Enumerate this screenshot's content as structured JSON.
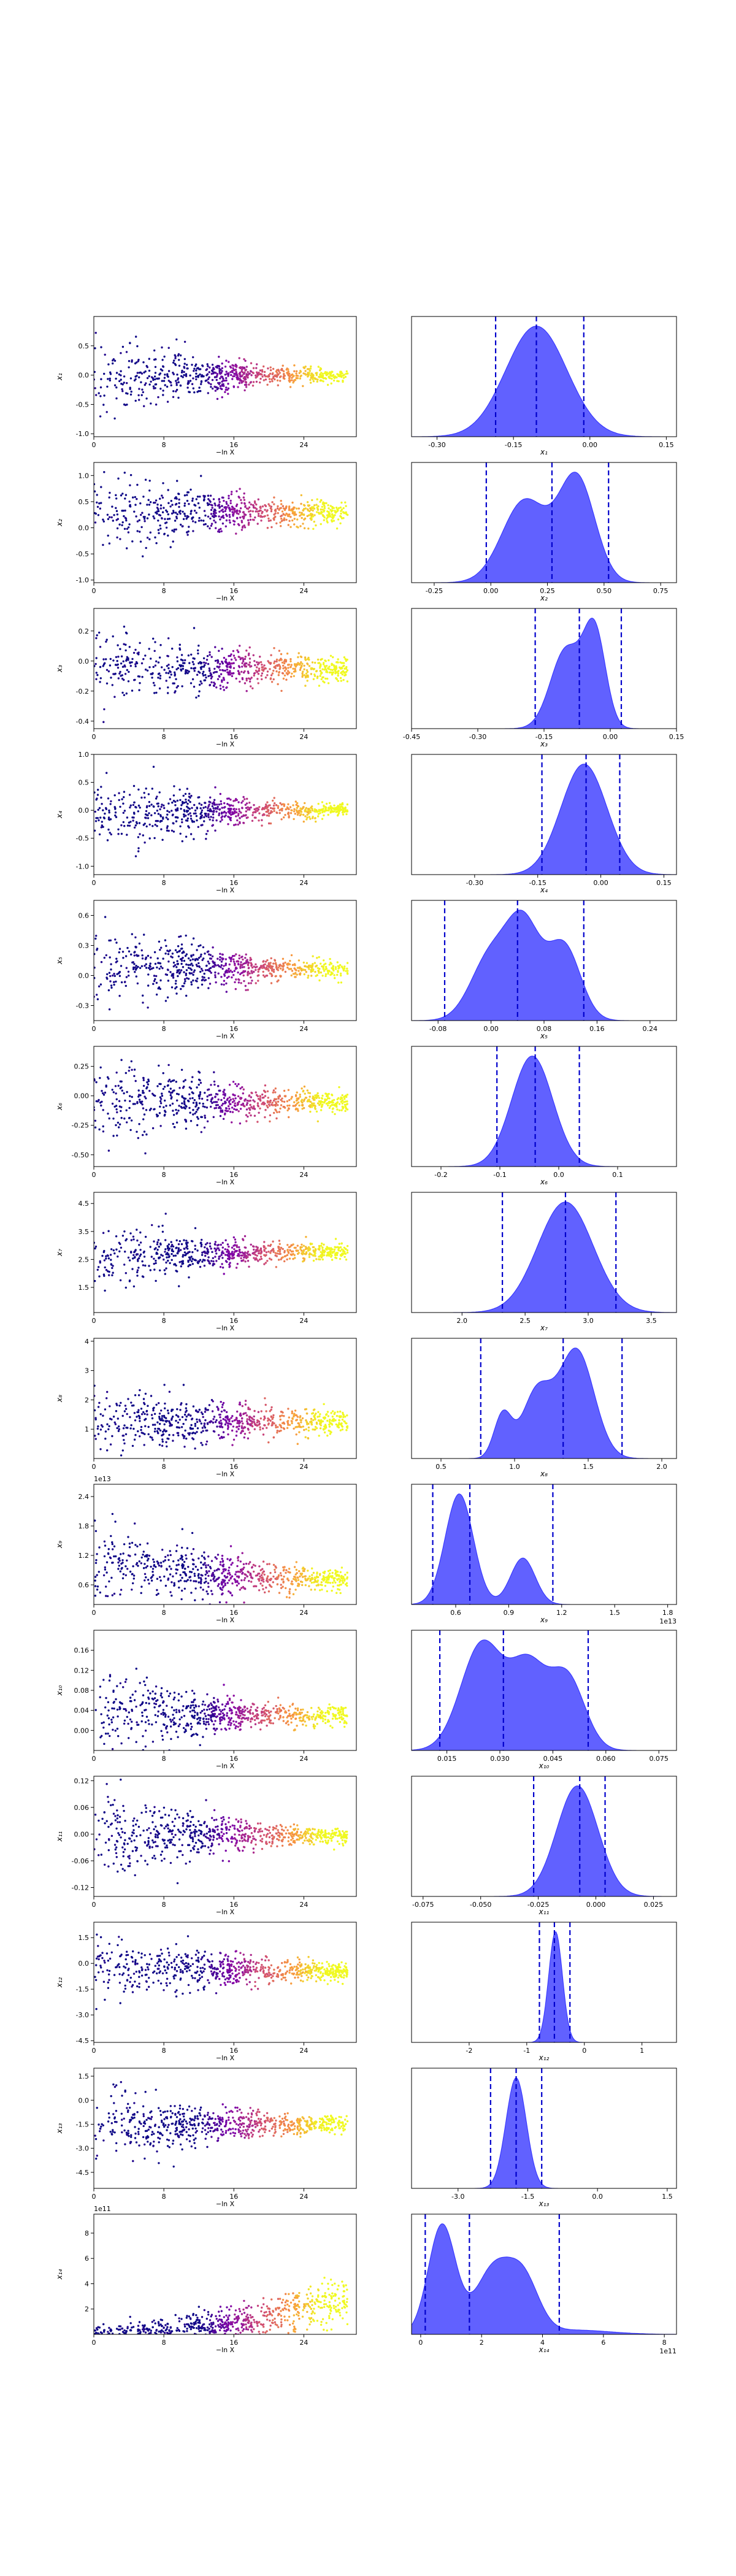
{
  "figure": {
    "colors": {
      "kde_fill": "#0000ff",
      "quantile_line": "#0000cc",
      "frame": "#000000",
      "scatter_map": [
        "#0d0887",
        "#7e03a8",
        "#cc4778",
        "#f89540",
        "#f0f921"
      ]
    },
    "scatter_xlabel": "−ln X",
    "scatter_xticks": [
      "0",
      "8",
      "16",
      "24"
    ]
  },
  "chart_data": [
    {
      "type": "scatter",
      "param": "x1",
      "ylabel": "x₁",
      "yticks": [
        "-1.0",
        "-0.5",
        "0.0",
        "0.5"
      ],
      "ylim": [
        -1.05,
        1.0
      ],
      "center": [
        0.0,
        0.0,
        0.0,
        0.0
      ],
      "spread": [
        0.33,
        0.2,
        0.08,
        0.05
      ],
      "xlim": [
        0,
        30
      ]
    },
    {
      "type": "area",
      "param": "x1",
      "xlabel": "x₁",
      "xticks": [
        "-0.30",
        "-0.15",
        "0.00",
        "0.15"
      ],
      "xlim": [
        -0.35,
        0.17
      ],
      "quantiles": [
        -0.185,
        -0.105,
        -0.012
      ],
      "peaks": [
        [
          -0.105,
          0.06,
          1.0
        ]
      ]
    },
    {
      "type": "scatter",
      "param": "x2",
      "ylabel": "x₂",
      "yticks": [
        "-1.0",
        "-0.5",
        "0.0",
        "0.5",
        "1.0"
      ],
      "ylim": [
        -1.05,
        1.25
      ],
      "center": [
        0.3,
        0.3,
        0.3,
        0.3
      ],
      "spread": [
        0.35,
        0.25,
        0.15,
        0.1
      ],
      "xlim": [
        0,
        30
      ]
    },
    {
      "type": "area",
      "param": "x2",
      "xlabel": "x₂",
      "xticks": [
        "-0.25",
        "0.00",
        "0.25",
        "0.50",
        "0.75"
      ],
      "xlim": [
        -0.35,
        0.82
      ],
      "quantiles": [
        -0.02,
        0.27,
        0.52
      ],
      "peaks": [
        [
          0.15,
          0.1,
          0.75
        ],
        [
          0.38,
          0.08,
          0.95
        ]
      ]
    },
    {
      "type": "scatter",
      "param": "x3",
      "ylabel": "x₃",
      "yticks": [
        "-0.4",
        "-0.2",
        "0.0",
        "0.2"
      ],
      "ylim": [
        -0.45,
        0.35
      ],
      "center": [
        -0.05,
        -0.05,
        -0.05,
        -0.05
      ],
      "spread": [
        0.12,
        0.08,
        0.05,
        0.04
      ],
      "xlim": [
        0,
        30
      ]
    },
    {
      "type": "area",
      "param": "x3",
      "xlabel": "x₃",
      "xticks": [
        "-0.45",
        "-0.30",
        "-0.15",
        "0.00",
        "0.15"
      ],
      "xlim": [
        -0.45,
        0.15
      ],
      "quantiles": [
        -0.17,
        -0.07,
        0.025
      ],
      "peaks": [
        [
          -0.1,
          0.035,
          0.8
        ],
        [
          -0.035,
          0.025,
          0.95
        ]
      ]
    },
    {
      "type": "scatter",
      "param": "x4",
      "ylabel": "x₄",
      "yticks": [
        "-1.0",
        "-0.5",
        "0.0",
        "0.5",
        "1.0"
      ],
      "ylim": [
        -1.15,
        1.0
      ],
      "center": [
        -0.05,
        -0.05,
        0.0,
        0.0
      ],
      "spread": [
        0.35,
        0.2,
        0.08,
        0.05
      ],
      "xlim": [
        0,
        30
      ]
    },
    {
      "type": "area",
      "param": "x4",
      "xlabel": "x₄",
      "xticks": [
        "-0.30",
        "-0.15",
        "0.00",
        "0.15"
      ],
      "xlim": [
        -0.45,
        0.18
      ],
      "quantiles": [
        -0.14,
        -0.035,
        0.045
      ],
      "peaks": [
        [
          -0.04,
          0.055,
          1.0
        ]
      ]
    },
    {
      "type": "scatter",
      "param": "x5",
      "ylabel": "x₅",
      "yticks": [
        "-0.3",
        "0.0",
        "0.3",
        "0.6"
      ],
      "ylim": [
        -0.45,
        0.75
      ],
      "center": [
        0.1,
        0.1,
        0.07,
        0.05
      ],
      "spread": [
        0.2,
        0.12,
        0.06,
        0.04
      ],
      "xlim": [
        0,
        30
      ]
    },
    {
      "type": "area",
      "param": "x5",
      "xlabel": "x₅",
      "xticks": [
        "-0.08",
        "0.00",
        "0.08",
        "0.16",
        "0.24"
      ],
      "xlim": [
        -0.12,
        0.28
      ],
      "quantiles": [
        -0.07,
        0.04,
        0.14
      ],
      "peaks": [
        [
          0.0,
          0.03,
          0.7
        ],
        [
          0.05,
          0.025,
          0.95
        ],
        [
          0.11,
          0.025,
          0.8
        ]
      ]
    },
    {
      "type": "scatter",
      "param": "x6",
      "ylabel": "x₆",
      "yticks": [
        "-0.50",
        "-0.25",
        "0.00",
        "0.25"
      ],
      "ylim": [
        -0.6,
        0.42
      ],
      "center": [
        -0.05,
        -0.05,
        -0.05,
        -0.05
      ],
      "spread": [
        0.17,
        0.12,
        0.06,
        0.04
      ],
      "xlim": [
        0,
        30
      ]
    },
    {
      "type": "area",
      "param": "x6",
      "xlabel": "x₆",
      "xticks": [
        "-0.2",
        "-0.1",
        "0.0",
        "0.1"
      ],
      "xlim": [
        -0.25,
        0.2
      ],
      "quantiles": [
        -0.105,
        -0.04,
        0.035
      ],
      "peaks": [
        [
          -0.045,
          0.035,
          1.0
        ]
      ]
    },
    {
      "type": "scatter",
      "param": "x7",
      "ylabel": "x₇",
      "yticks": [
        "1.5",
        "2.5",
        "3.5",
        "4.5"
      ],
      "ylim": [
        0.6,
        4.9
      ],
      "center": [
        2.5,
        2.7,
        2.8,
        2.8
      ],
      "spread": [
        0.6,
        0.35,
        0.2,
        0.15
      ],
      "xlim": [
        0,
        30
      ]
    },
    {
      "type": "area",
      "param": "x7",
      "xlabel": "x₇",
      "xticks": [
        "2.0",
        "2.5",
        "3.0",
        "3.5"
      ],
      "xlim": [
        1.6,
        3.7
      ],
      "quantiles": [
        2.32,
        2.82,
        3.22
      ],
      "peaks": [
        [
          2.82,
          0.22,
          1.0
        ]
      ]
    },
    {
      "type": "scatter",
      "param": "x8",
      "ylabel": "x₈",
      "yticks": [
        "1",
        "2",
        "3",
        "4"
      ],
      "ylim": [
        0.0,
        4.1
      ],
      "center": [
        1.3,
        1.3,
        1.25,
        1.25
      ],
      "spread": [
        0.6,
        0.4,
        0.25,
        0.2
      ],
      "xlim": [
        0,
        30
      ]
    },
    {
      "type": "area",
      "param": "x8",
      "xlabel": "x₈",
      "xticks": [
        "0.5",
        "1.0",
        "1.5",
        "2.0"
      ],
      "xlim": [
        0.3,
        2.1
      ],
      "quantiles": [
        0.77,
        1.33,
        1.73
      ],
      "peaks": [
        [
          0.92,
          0.06,
          0.4
        ],
        [
          1.15,
          0.1,
          0.6
        ],
        [
          1.42,
          0.12,
          1.0
        ]
      ]
    },
    {
      "type": "scatter",
      "param": "x9",
      "ylabel": "x₉",
      "yticks": [
        "0.6",
        "1.2",
        "1.8",
        "2.4"
      ],
      "ylim": [
        0.2,
        2.65
      ],
      "scale_label": "1e13",
      "center": [
        1.0,
        0.9,
        0.75,
        0.7
      ],
      "spread": [
        0.4,
        0.3,
        0.15,
        0.1
      ],
      "xlim": [
        0,
        30
      ]
    },
    {
      "type": "area",
      "param": "x9",
      "xlabel": "x₉",
      "xticks": [
        "0.6",
        "0.9",
        "1.2",
        "1.5",
        "1.8"
      ],
      "xlim": [
        0.35,
        1.85
      ],
      "scale_label": "1e13",
      "quantiles": [
        0.47,
        0.68,
        1.15
      ],
      "peaks": [
        [
          0.62,
          0.08,
          1.0
        ],
        [
          0.98,
          0.07,
          0.42
        ]
      ]
    },
    {
      "type": "scatter",
      "param": "x10",
      "ylabel": "x₁₀",
      "yticks": [
        "0.00",
        "0.04",
        "0.08",
        "0.12",
        "0.16"
      ],
      "ylim": [
        -0.04,
        0.2
      ],
      "center": [
        0.04,
        0.035,
        0.03,
        0.03
      ],
      "spread": [
        0.04,
        0.025,
        0.012,
        0.008
      ],
      "xlim": [
        0,
        30
      ]
    },
    {
      "type": "area",
      "param": "x10",
      "xlabel": "x₁₀",
      "xticks": [
        "0.015",
        "0.030",
        "0.045",
        "0.060",
        "0.075"
      ],
      "xlim": [
        0.005,
        0.08
      ],
      "quantiles": [
        0.013,
        0.031,
        0.055
      ],
      "peaks": [
        [
          0.025,
          0.006,
          0.95
        ],
        [
          0.038,
          0.005,
          0.7
        ],
        [
          0.049,
          0.005,
          0.65
        ]
      ]
    },
    {
      "type": "scatter",
      "param": "x11",
      "ylabel": "x₁₁",
      "yticks": [
        "-0.12",
        "-0.06",
        "0.00",
        "0.06",
        "0.12"
      ],
      "ylim": [
        -0.14,
        0.13
      ],
      "center": [
        0.0,
        0.0,
        -0.005,
        -0.005
      ],
      "spread": [
        0.05,
        0.03,
        0.012,
        0.008
      ],
      "xlim": [
        0,
        30
      ]
    },
    {
      "type": "area",
      "param": "x11",
      "xlabel": "x₁₁",
      "xticks": [
        "-0.075",
        "-0.050",
        "-0.025",
        "0.000",
        "0.025"
      ],
      "xlim": [
        -0.08,
        0.035
      ],
      "quantiles": [
        -0.027,
        -0.007,
        0.004
      ],
      "peaks": [
        [
          -0.008,
          0.009,
          1.0
        ]
      ]
    },
    {
      "type": "scatter",
      "param": "x12",
      "ylabel": "x₁₂",
      "yticks": [
        "-4.5",
        "-3.0",
        "-1.5",
        "0.0",
        "1.5"
      ],
      "ylim": [
        -4.6,
        2.4
      ],
      "center": [
        -0.2,
        -0.3,
        -0.4,
        -0.5
      ],
      "spread": [
        1.0,
        0.7,
        0.35,
        0.25
      ],
      "xlim": [
        0,
        30
      ]
    },
    {
      "type": "area",
      "param": "x12",
      "xlabel": "x₁₂",
      "xticks": [
        "-2",
        "-1",
        "0",
        "1"
      ],
      "xlim": [
        -3.0,
        1.6
      ],
      "quantiles": [
        -0.78,
        -0.52,
        -0.25
      ],
      "peaks": [
        [
          -0.5,
          0.12,
          1.0
        ]
      ]
    },
    {
      "type": "scatter",
      "param": "x13",
      "ylabel": "x₁₃",
      "yticks": [
        "-4.5",
        "-3.0",
        "-1.5",
        "0.0",
        "1.5"
      ],
      "ylim": [
        -5.5,
        2.0
      ],
      "center": [
        -1.6,
        -1.5,
        -1.5,
        -1.5
      ],
      "spread": [
        1.1,
        0.7,
        0.35,
        0.25
      ],
      "xlim": [
        0,
        30
      ]
    },
    {
      "type": "area",
      "param": "x13",
      "xlabel": "x₁₃",
      "xticks": [
        "-3.0",
        "-1.5",
        "0.0",
        "1.5"
      ],
      "xlim": [
        -4.0,
        1.7
      ],
      "quantiles": [
        -2.3,
        -1.75,
        -1.2
      ],
      "peaks": [
        [
          -1.75,
          0.22,
          1.0
        ]
      ]
    },
    {
      "type": "scatter",
      "param": "x14",
      "ylabel": "x₁₄",
      "yticks": [
        "2",
        "4",
        "6",
        "8"
      ],
      "ylim": [
        0,
        9.5
      ],
      "scale_label": "1e11",
      "center": [
        0.2,
        0.3,
        1.2,
        2.8
      ],
      "spread": [
        0.3,
        0.5,
        0.8,
        1.0
      ],
      "xlim": [
        0,
        30
      ]
    },
    {
      "type": "area",
      "param": "x14",
      "xlabel": "x₁₄",
      "xticks": [
        "0",
        "2",
        "4",
        "6",
        "8"
      ],
      "xlim": [
        -0.3,
        8.4
      ],
      "scale_label": "1e11",
      "quantiles": [
        0.15,
        1.6,
        4.55
      ],
      "peaks": [
        [
          0.7,
          0.45,
          1.0
        ],
        [
          2.4,
          0.6,
          0.6
        ],
        [
          3.4,
          0.5,
          0.45
        ],
        [
          5.0,
          1.2,
          0.04
        ]
      ]
    }
  ]
}
